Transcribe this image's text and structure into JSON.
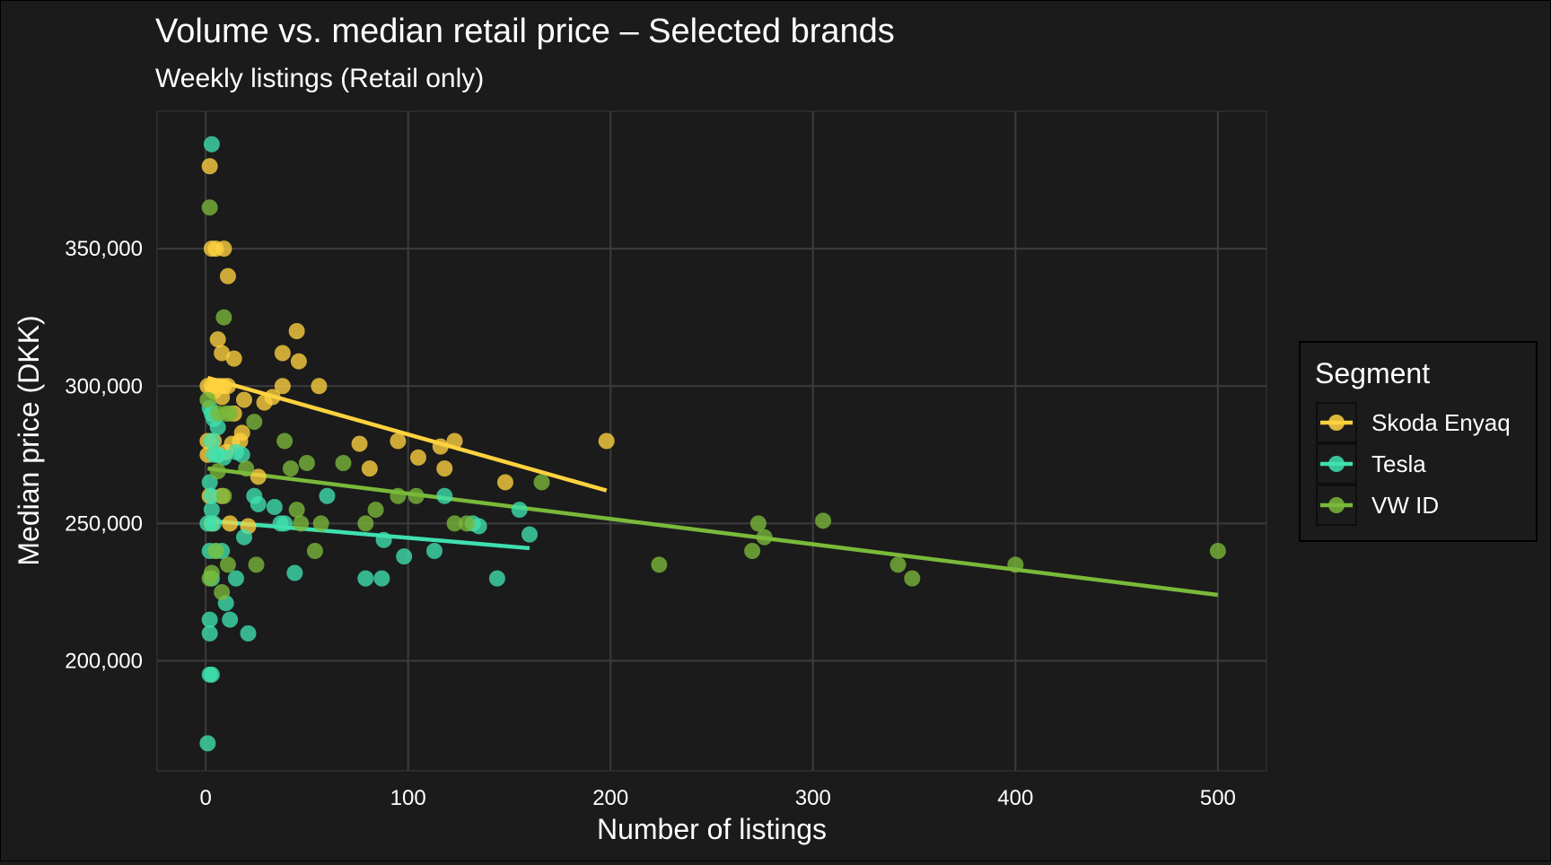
{
  "chart_data": {
    "type": "scatter",
    "title": "Volume vs. median retail price – Selected brands",
    "subtitle": "Weekly listings (Retail only)",
    "xlabel": "Number of listings",
    "ylabel": "Median price (DKK)",
    "xlim": [
      -24,
      524
    ],
    "ylim": [
      160000,
      400000
    ],
    "x_ticks": [
      0,
      100,
      200,
      300,
      400,
      500
    ],
    "x_tick_labels": [
      "0",
      "100",
      "200",
      "300",
      "400",
      "500"
    ],
    "y_ticks": [
      200000,
      250000,
      300000,
      350000
    ],
    "y_tick_labels": [
      "200,000",
      "250,000",
      "300,000",
      "350,000"
    ],
    "grid": true,
    "legend": {
      "title": "Segment",
      "position": "right"
    },
    "series": [
      {
        "name": "Skoda Enyaq",
        "color": "#ffd23f",
        "trend": {
          "x": [
            1,
            198
          ],
          "y": [
            303000,
            262000
          ]
        },
        "points": [
          [
            2,
            380000
          ],
          [
            3,
            350000
          ],
          [
            5,
            350000
          ],
          [
            9,
            350000
          ],
          [
            11,
            340000
          ],
          [
            6,
            317000
          ],
          [
            8,
            312000
          ],
          [
            14,
            310000
          ],
          [
            38,
            312000
          ],
          [
            45,
            320000
          ],
          [
            46,
            309000
          ],
          [
            1,
            300000
          ],
          [
            3,
            300000
          ],
          [
            5,
            300000
          ],
          [
            7,
            300000
          ],
          [
            9,
            300000
          ],
          [
            11,
            300000
          ],
          [
            38,
            300000
          ],
          [
            56,
            300000
          ],
          [
            4,
            298000
          ],
          [
            8,
            296000
          ],
          [
            19,
            295000
          ],
          [
            29,
            294000
          ],
          [
            33,
            296000
          ],
          [
            14,
            290000
          ],
          [
            1,
            280000
          ],
          [
            4,
            280000
          ],
          [
            13,
            279000
          ],
          [
            18,
            283000
          ],
          [
            17,
            280000
          ],
          [
            76,
            279000
          ],
          [
            95,
            280000
          ],
          [
            116,
            278000
          ],
          [
            123,
            280000
          ],
          [
            6,
            275000
          ],
          [
            10,
            276000
          ],
          [
            1,
            275000
          ],
          [
            105,
            274000
          ],
          [
            81,
            270000
          ],
          [
            118,
            270000
          ],
          [
            26,
            267000
          ],
          [
            148,
            265000
          ],
          [
            198,
            280000
          ],
          [
            2,
            260000
          ],
          [
            8,
            260000
          ],
          [
            3,
            250000
          ],
          [
            12,
            250000
          ],
          [
            21,
            249000
          ]
        ]
      },
      {
        "name": "Tesla",
        "color": "#3fe0b0",
        "trend": {
          "x": [
            1,
            160
          ],
          "y": [
            251000,
            241000
          ]
        },
        "points": [
          [
            3,
            388000
          ],
          [
            2,
            292000
          ],
          [
            3,
            290000
          ],
          [
            4,
            288000
          ],
          [
            6,
            285000
          ],
          [
            3,
            280000
          ],
          [
            4,
            275000
          ],
          [
            6,
            275000
          ],
          [
            9,
            274000
          ],
          [
            15,
            276000
          ],
          [
            18,
            275000
          ],
          [
            2,
            265000
          ],
          [
            3,
            260000
          ],
          [
            3,
            255000
          ],
          [
            4,
            250000
          ],
          [
            1,
            250000
          ],
          [
            24,
            260000
          ],
          [
            26,
            257000
          ],
          [
            34,
            256000
          ],
          [
            60,
            260000
          ],
          [
            118,
            260000
          ],
          [
            155,
            255000
          ],
          [
            37,
            250000
          ],
          [
            39,
            250000
          ],
          [
            132,
            250000
          ],
          [
            135,
            249000
          ],
          [
            160,
            246000
          ],
          [
            19,
            245000
          ],
          [
            88,
            244000
          ],
          [
            2,
            240000
          ],
          [
            5,
            240000
          ],
          [
            8,
            240000
          ],
          [
            98,
            238000
          ],
          [
            113,
            240000
          ],
          [
            44,
            232000
          ],
          [
            79,
            230000
          ],
          [
            87,
            230000
          ],
          [
            144,
            230000
          ],
          [
            15,
            230000
          ],
          [
            3,
            230000
          ],
          [
            10,
            221000
          ],
          [
            12,
            215000
          ],
          [
            2,
            215000
          ],
          [
            21,
            210000
          ],
          [
            2,
            210000
          ],
          [
            2,
            195000
          ],
          [
            3,
            195000
          ],
          [
            1,
            170000
          ]
        ]
      },
      {
        "name": "VW ID",
        "color": "#7ab93a",
        "trend": {
          "x": [
            1,
            500
          ],
          "y": [
            270000,
            224000
          ]
        },
        "points": [
          [
            2,
            365000
          ],
          [
            9,
            325000
          ],
          [
            1,
            295000
          ],
          [
            6,
            290000
          ],
          [
            10,
            290000
          ],
          [
            12,
            290000
          ],
          [
            24,
            287000
          ],
          [
            39,
            280000
          ],
          [
            42,
            270000
          ],
          [
            50,
            272000
          ],
          [
            68,
            272000
          ],
          [
            20,
            270000
          ],
          [
            166,
            265000
          ],
          [
            95,
            260000
          ],
          [
            104,
            260000
          ],
          [
            9,
            260000
          ],
          [
            45,
            255000
          ],
          [
            84,
            255000
          ],
          [
            47,
            250000
          ],
          [
            57,
            250000
          ],
          [
            79,
            250000
          ],
          [
            123,
            250000
          ],
          [
            129,
            250000
          ],
          [
            273,
            250000
          ],
          [
            305,
            251000
          ],
          [
            276,
            245000
          ],
          [
            270,
            240000
          ],
          [
            54,
            240000
          ],
          [
            25,
            235000
          ],
          [
            11,
            235000
          ],
          [
            224,
            235000
          ],
          [
            342,
            235000
          ],
          [
            400,
            235000
          ],
          [
            500,
            240000
          ],
          [
            349,
            230000
          ],
          [
            8,
            225000
          ],
          [
            3,
            232000
          ],
          [
            5,
            240000
          ],
          [
            2,
            230000
          ],
          [
            6,
            269000
          ]
        ]
      }
    ]
  }
}
